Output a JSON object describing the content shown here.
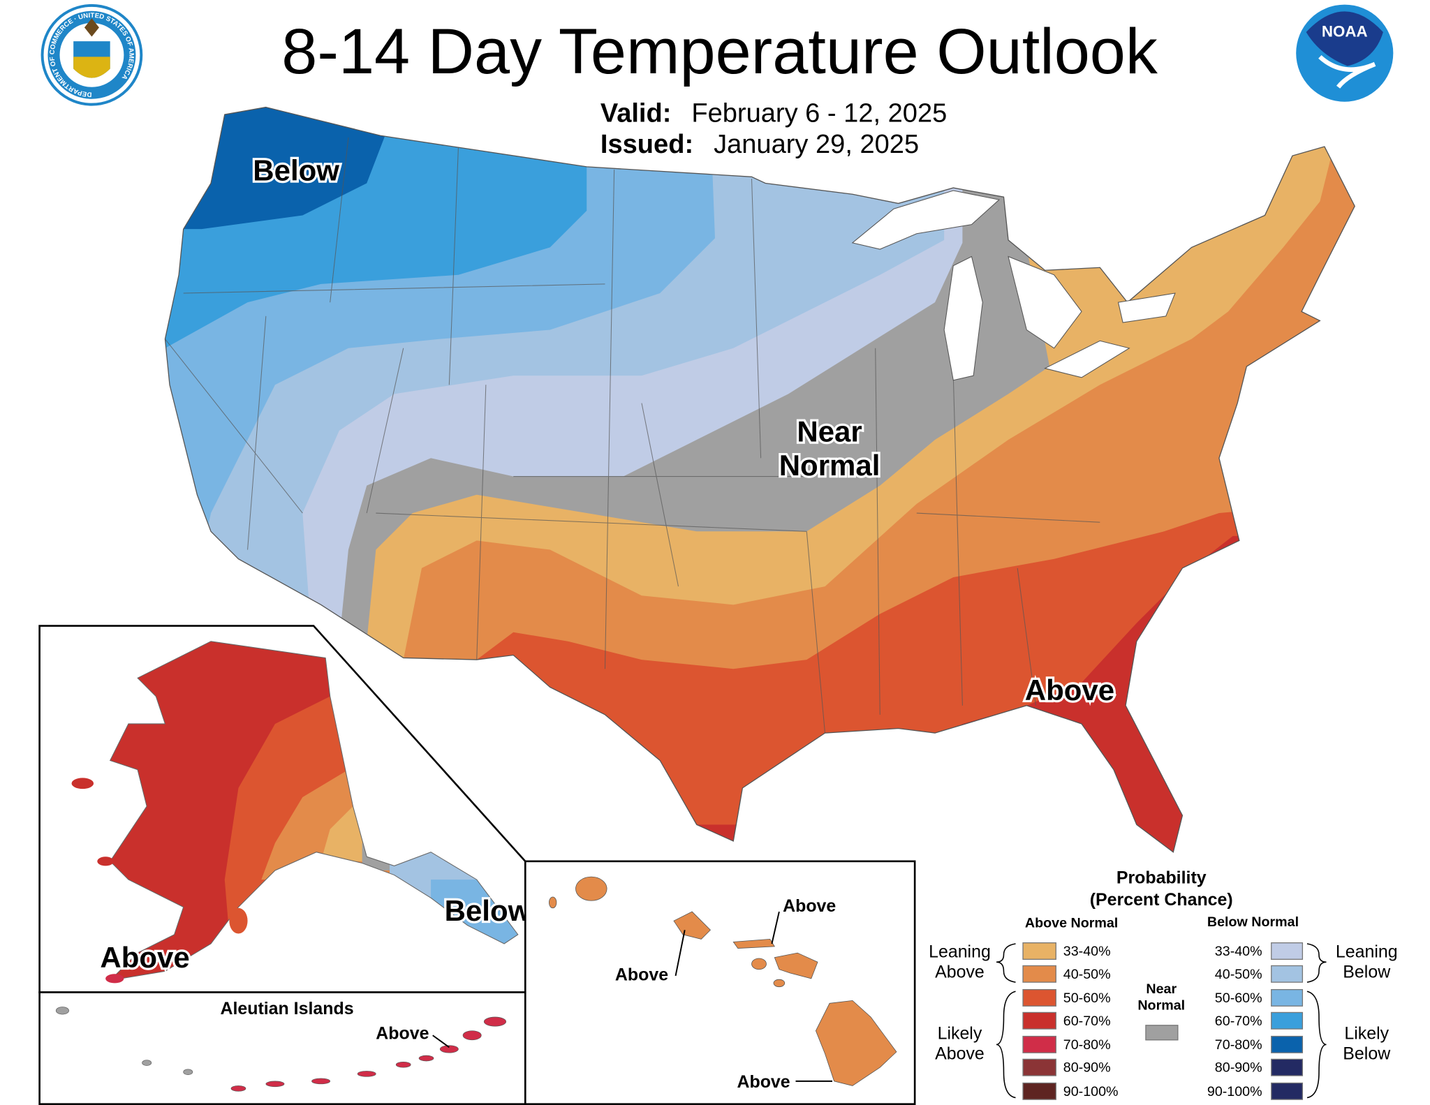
{
  "header": {
    "title": "8-14 Day Temperature Outlook",
    "valid_label": "Valid:",
    "valid_value": "February 6 - 12, 2025",
    "issued_label": "Issued:",
    "issued_value": "January 29, 2025",
    "noaa_logo_text": "NOAA",
    "doc_seal_text": "DEPARTMENT OF COMMERCE · UNITED STATES OF AMERICA"
  },
  "map_labels": {
    "conus_below": "Below",
    "conus_near_1": "Near",
    "conus_near_2": "Normal",
    "conus_above": "Above",
    "alaska_below": "Below",
    "alaska_above": "Above",
    "aleutian_title": "Aleutian Islands",
    "aleutian_above": "Above",
    "hawaii_above_1": "Above",
    "hawaii_above_2": "Above",
    "hawaii_above_3": "Above"
  },
  "legend": {
    "title_1": "Probability",
    "title_2": "(Percent Chance)",
    "above_header": "Above Normal",
    "below_header": "Below Normal",
    "near_1": "Near",
    "near_2": "Normal",
    "near_color": "#a0a0a0",
    "leaning_above_1": "Leaning",
    "leaning_above_2": "Above",
    "likely_above_1": "Likely",
    "likely_above_2": "Above",
    "leaning_below_1": "Leaning",
    "leaning_below_2": "Below",
    "likely_below_1": "Likely",
    "likely_below_2": "Below",
    "above": [
      {
        "range": "33-40%",
        "color": "#e8b265"
      },
      {
        "range": "40-50%",
        "color": "#e38b4a"
      },
      {
        "range": "50-60%",
        "color": "#dc5530"
      },
      {
        "range": "60-70%",
        "color": "#c9302c"
      },
      {
        "range": "70-80%",
        "color": "#d02d48"
      },
      {
        "range": "80-90%",
        "color": "#8b3436"
      },
      {
        "range": "90-100%",
        "color": "#5e2421"
      }
    ],
    "below": [
      {
        "range": "33-40%",
        "color": "#c0cce6"
      },
      {
        "range": "40-50%",
        "color": "#a3c3e2"
      },
      {
        "range": "50-60%",
        "color": "#79b5e3"
      },
      {
        "range": "60-70%",
        "color": "#3a9fdc"
      },
      {
        "range": "70-80%",
        "color": "#0a62ac"
      },
      {
        "range": "80-90%",
        "color": "#232a63"
      },
      {
        "range": "90-100%",
        "color": "#232a63"
      }
    ]
  }
}
